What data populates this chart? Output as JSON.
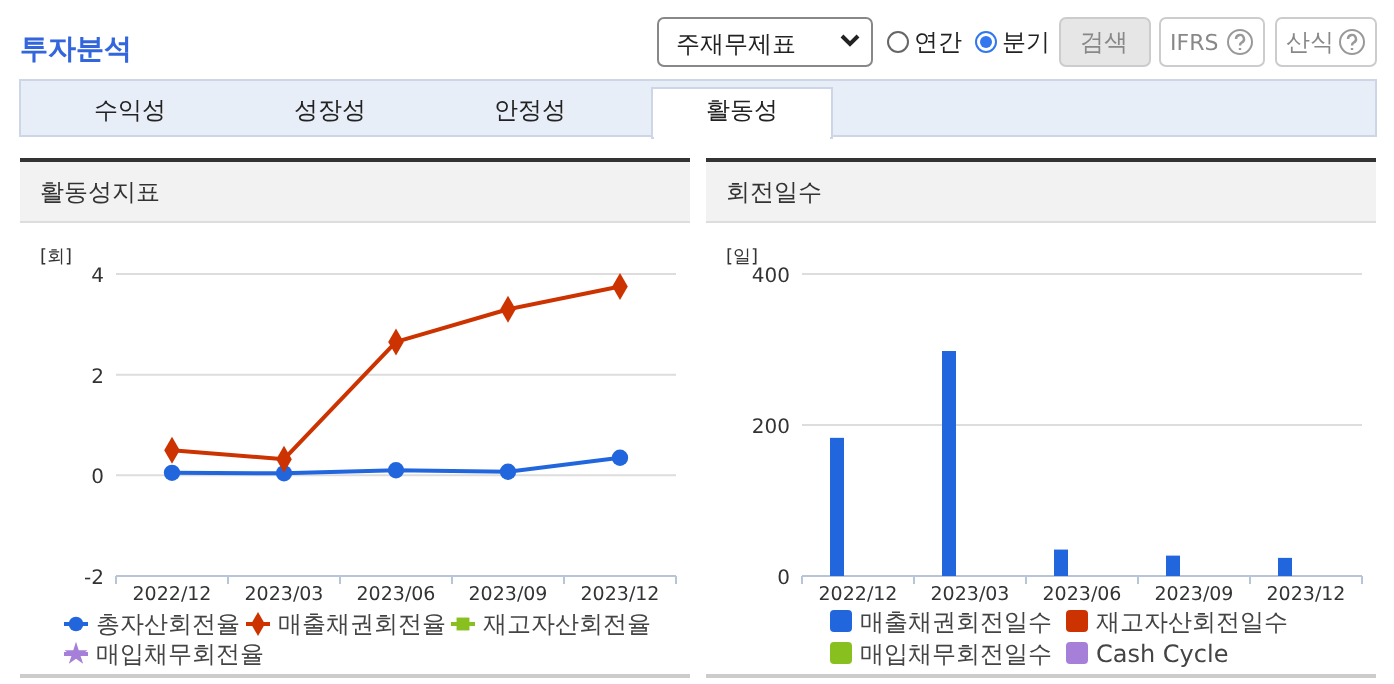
{
  "chart_data": [
    {
      "type": "line",
      "title": "활동성지표",
      "ylabel": "[회]",
      "categories": [
        "2022/12",
        "2023/03",
        "2023/06",
        "2023/09",
        "2023/12"
      ],
      "ylim": [
        -2,
        4
      ],
      "yticks": [
        -2,
        0,
        2,
        4
      ],
      "grid": "y",
      "legend": "bottom",
      "line_style": "solid",
      "annotations": [
        "투자분석",
        "주재무제표",
        "연간",
        "분기",
        "검색",
        "IFRS",
        "산식",
        "수익성",
        "성장성",
        "안정성",
        "활동성"
      ],
      "series": [
        {
          "name": "총자산회전율",
          "color": "#2266dd",
          "marker": "circle",
          "values": [
            0.05,
            0.04,
            0.1,
            0.07,
            0.35
          ]
        },
        {
          "name": "매출채권회전율",
          "color": "#cc3300",
          "marker": "diamond",
          "values": [
            0.5,
            0.32,
            2.65,
            3.3,
            3.75
          ]
        },
        {
          "name": "재고자산회전율",
          "color": "#88c020",
          "marker": "square",
          "values": [
            null,
            null,
            null,
            null,
            null
          ]
        },
        {
          "name": "매입채무회전율",
          "color": "#a67fd9",
          "marker": "star",
          "values": [
            null,
            null,
            null,
            null,
            null
          ]
        }
      ]
    },
    {
      "type": "bar",
      "title": "회전일수",
      "ylabel": "[일]",
      "categories": [
        "2022/12",
        "2023/03",
        "2023/06",
        "2023/09",
        "2023/12"
      ],
      "ylim": [
        0,
        400
      ],
      "yticks": [
        0,
        200,
        400
      ],
      "grid": "y",
      "legend": "bottom",
      "series": [
        {
          "name": "매출채권회전일수",
          "color": "#2266dd",
          "values": [
            183,
            298,
            35,
            27,
            24
          ]
        },
        {
          "name": "재고자산회전일수",
          "color": "#cc3300",
          "values": [
            null,
            null,
            null,
            null,
            null
          ]
        },
        {
          "name": "매입채무회전일수",
          "color": "#88c020",
          "values": [
            null,
            null,
            null,
            null,
            null
          ]
        },
        {
          "name": "Cash Cycle",
          "color": "#a67fd9",
          "values": [
            null,
            null,
            null,
            null,
            null
          ]
        }
      ]
    }
  ]
}
